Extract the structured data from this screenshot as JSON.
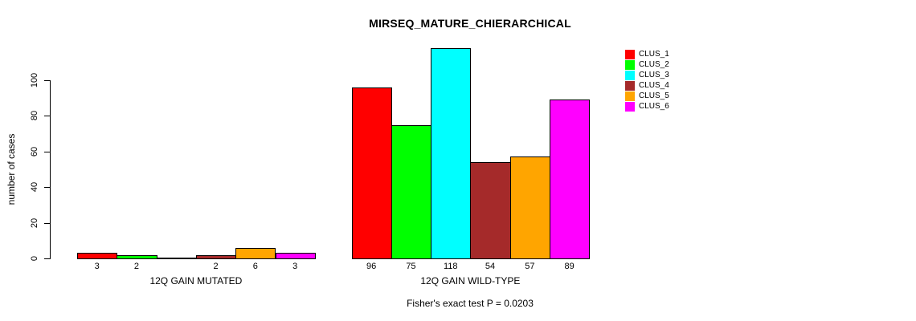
{
  "chart_data": {
    "type": "bar",
    "title": "MIRSEQ_MATURE_CHIERARCHICAL",
    "ylabel": "number of cases",
    "xlabel": "",
    "ylim": [
      0,
      118
    ],
    "yticks": [
      0,
      20,
      40,
      60,
      80,
      100
    ],
    "grid": false,
    "legend_position": "top-right",
    "categories": [
      "12Q GAIN MUTATED",
      "12Q GAIN WILD-TYPE"
    ],
    "series": [
      {
        "name": "CLUS_1",
        "color": "#ff0000",
        "values": [
          3,
          96
        ]
      },
      {
        "name": "CLUS_2",
        "color": "#00ff00",
        "values": [
          2,
          75
        ]
      },
      {
        "name": "CLUS_3",
        "color": "#00ffff",
        "values": [
          0,
          118
        ]
      },
      {
        "name": "CLUS_4",
        "color": "#a52a2a",
        "values": [
          2,
          54
        ]
      },
      {
        "name": "CLUS_5",
        "color": "#ffa500",
        "values": [
          6,
          57
        ]
      },
      {
        "name": "CLUS_6",
        "color": "#ff00ff",
        "values": [
          3,
          89
        ]
      }
    ],
    "bar_value_labels": [
      [
        "3",
        "2",
        "",
        "2",
        "6",
        "3"
      ],
      [
        "96",
        "75",
        "118",
        "54",
        "57",
        "89"
      ]
    ],
    "annotation": "Fisher's exact test P = 0.0203"
  }
}
